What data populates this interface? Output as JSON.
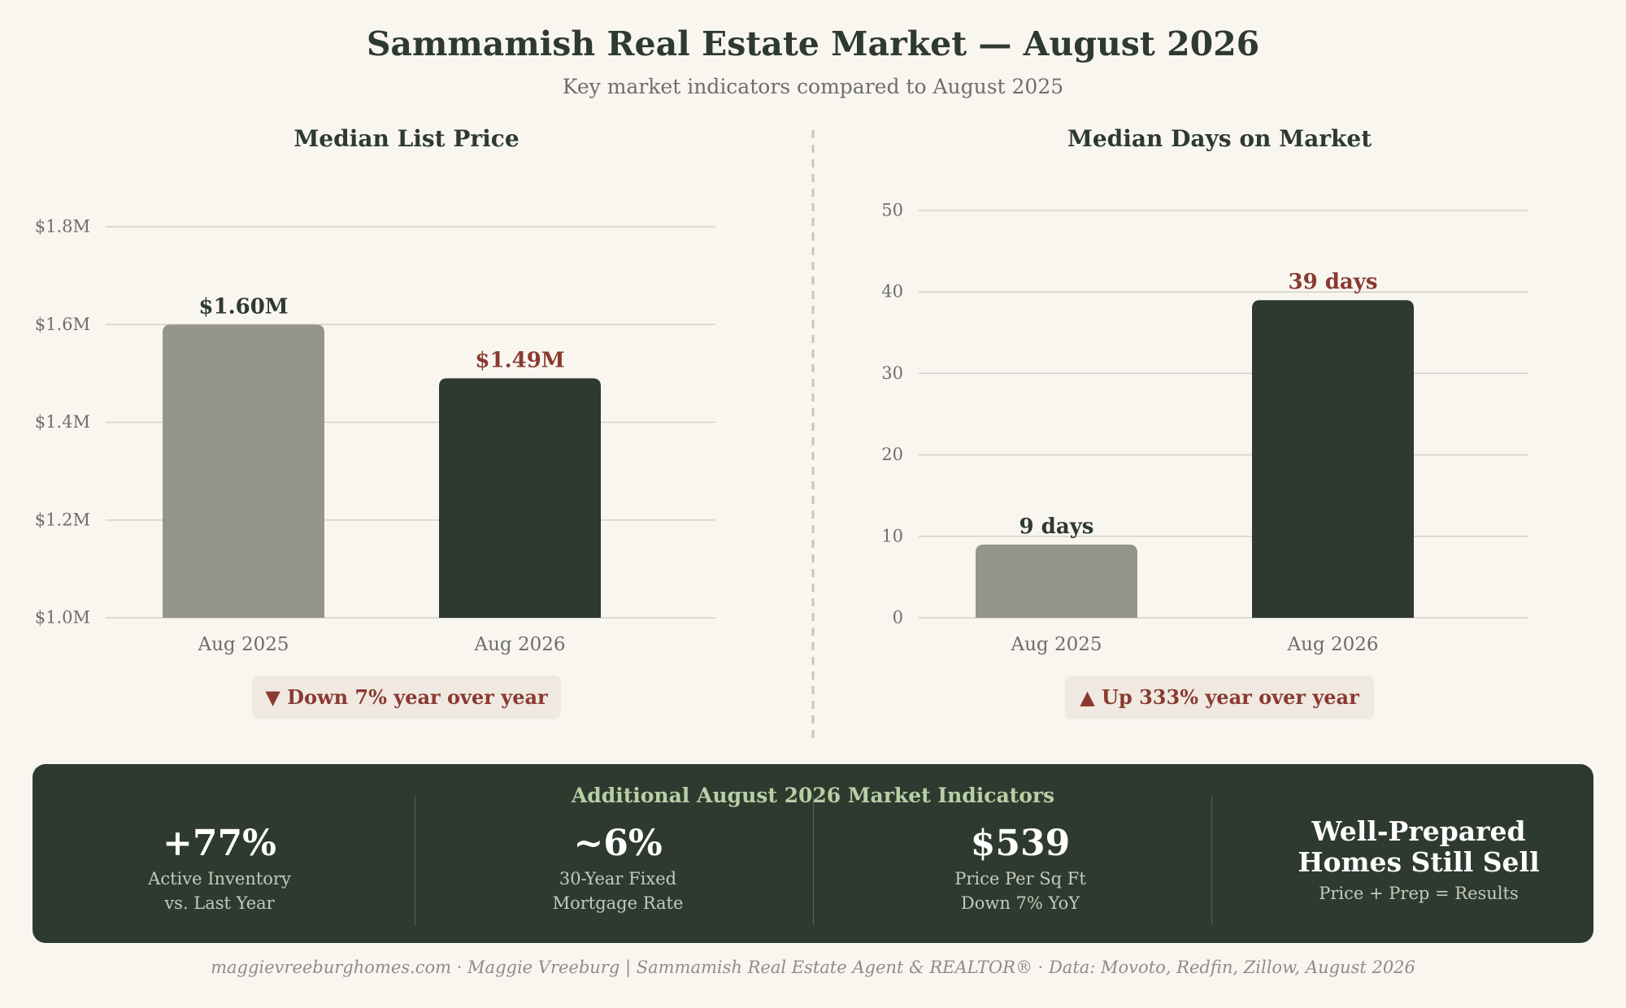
{
  "header": {
    "title": "Sammamish Real Estate Market — August 2026",
    "subtitle": "Key market indicators compared to August 2025"
  },
  "colors": {
    "bar_prior": "#96958a",
    "bar_current": "#2e3a2f",
    "highlight": "#8a3a30",
    "grid": "#d4d1ca"
  },
  "chart_data": [
    {
      "type": "bar",
      "title": "Median List Price",
      "categories": [
        "Aug 2025",
        "Aug 2026"
      ],
      "values": [
        1.6,
        1.49
      ],
      "value_labels": [
        "$1.60M",
        "$1.49M"
      ],
      "ylim": [
        1.0,
        1.8
      ],
      "yticks": [
        1.0,
        1.2,
        1.4,
        1.6,
        1.8
      ],
      "ytick_labels": [
        "$1.0M",
        "$1.2M",
        "$1.4M",
        "$1.6M",
        "$1.8M"
      ],
      "grid": true,
      "change_note": "▼ Down 7% year over year"
    },
    {
      "type": "bar",
      "title": "Median Days on Market",
      "categories": [
        "Aug 2025",
        "Aug 2026"
      ],
      "values": [
        9,
        39
      ],
      "value_labels": [
        "9 days",
        "39 days"
      ],
      "ylim": [
        0,
        50
      ],
      "yticks": [
        0,
        10,
        20,
        30,
        40,
        50
      ],
      "ytick_labels": [
        "0",
        "10",
        "20",
        "30",
        "40",
        "50"
      ],
      "grid": true,
      "change_note": "▲ Up 333% year over year"
    }
  ],
  "indicators": {
    "title": "Additional August 2026 Market Indicators",
    "items": [
      {
        "value": "+77%",
        "label_line1": "Active Inventory",
        "label_line2": "vs. Last Year"
      },
      {
        "value": "~6%",
        "label_line1": "30-Year Fixed",
        "label_line2": "Mortgage Rate"
      },
      {
        "value": "$539",
        "label_line1": "Price Per Sq Ft",
        "label_line2": "Down 7% YoY"
      }
    ],
    "message": {
      "line1": "Well-Prepared",
      "line2": "Homes Still Sell",
      "tagline": "Price + Prep = Results"
    }
  },
  "footer": "maggievreeburghomes.com · Maggie Vreeburg | Sammamish Real Estate Agent & REALTOR® · Data: Movoto, Redfin, Zillow, August 2026"
}
